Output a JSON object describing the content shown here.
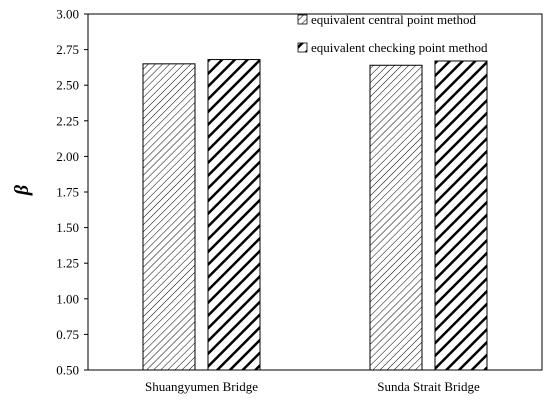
{
  "chart_data": {
    "type": "bar",
    "categories": [
      "Shuangyumen Bridge",
      "Sunda Strait Bridge"
    ],
    "series": [
      {
        "name": "equivalent central point method",
        "values": [
          2.65,
          2.64
        ],
        "pattern": "fine-diagonal-hatch"
      },
      {
        "name": "equivalent checking point method",
        "values": [
          2.68,
          2.67
        ],
        "pattern": "bold-diagonal-stripes"
      }
    ],
    "ylabel": "β",
    "xlabel": "",
    "ylim": [
      0.5,
      3.0
    ],
    "yticks": [
      "0.50",
      "0.75",
      "1.00",
      "1.25",
      "1.50",
      "1.75",
      "2.00",
      "2.25",
      "2.50",
      "2.75",
      "3.00"
    ],
    "grid": false,
    "legend_position": "top-right",
    "colors": {
      "bar_fill": "#ffffff",
      "stroke": "#000000"
    }
  }
}
